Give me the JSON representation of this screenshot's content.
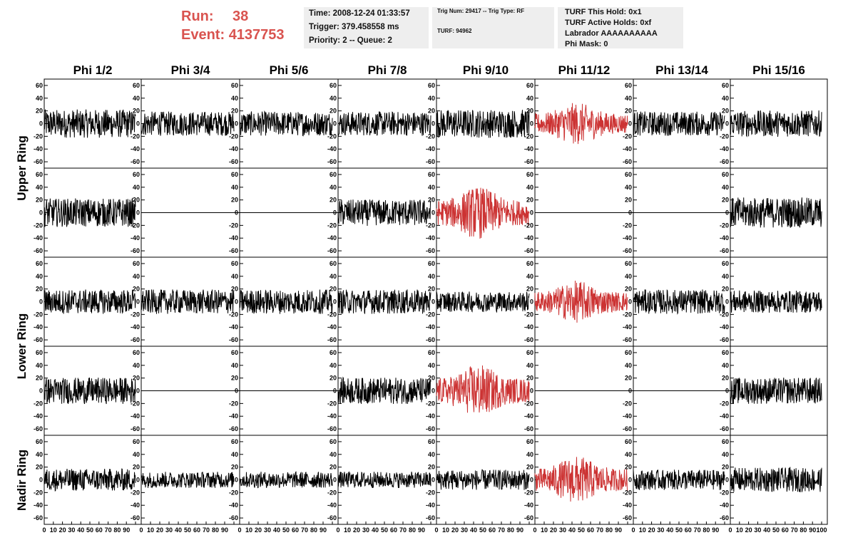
{
  "header": {
    "run_label": "Run:",
    "run_value": "38",
    "event_label": "Event:",
    "event_value": "4137753",
    "info_box_1": [
      "Time: 2008-12-24 01:33:57",
      "Trigger: 379.458558 ms",
      "Priority: 2 -- Queue: 2"
    ],
    "info_box_2": [
      "Trig Num: 29417 -- Trig Type: RF",
      "TURF: 94962"
    ],
    "info_box_3": [
      "TURF This Hold: 0x1",
      "TURF Active Holds: 0xf",
      "Labrador AAAAAAAAAA",
      "Phi Mask: 0"
    ],
    "accent_color": "#d9534f"
  },
  "chart_data": {
    "type": "line",
    "columns": [
      "Phi 1/2",
      "Phi 3/4",
      "Phi 5/6",
      "Phi 7/8",
      "Phi 9/10",
      "Phi 11/12",
      "Phi 13/14",
      "Phi 15/16"
    ],
    "row_groups": [
      "Upper Ring",
      "Lower Ring",
      "Nadir Ring"
    ],
    "y_ticks": [
      60,
      40,
      20,
      0,
      -20,
      -40,
      -60
    ],
    "x_ticks": [
      0,
      10,
      20,
      30,
      40,
      50,
      60,
      70,
      80,
      90,
      100
    ],
    "ylim": [
      -70,
      70
    ],
    "xlim": [
      0,
      100
    ],
    "grid": false,
    "triggered_color": "#cc3333",
    "normal_color": "#000000",
    "rows": [
      {
        "status": [
          "noise",
          "noise",
          "noise",
          "noise",
          "noise",
          "triggered",
          "noise",
          "noise"
        ],
        "amplitude": [
          14,
          12,
          12,
          12,
          14,
          16,
          12,
          13
        ]
      },
      {
        "status": [
          "noise",
          "flat",
          "flat",
          "noise",
          "triggered",
          "flat",
          "flat",
          "noise"
        ],
        "amplitude": [
          14,
          0,
          0,
          13,
          20,
          0,
          0,
          15
        ]
      },
      {
        "status": [
          "noise",
          "noise",
          "noise",
          "noise",
          "noise",
          "triggered",
          "noise",
          "noise"
        ],
        "amplitude": [
          12,
          12,
          12,
          12,
          10,
          16,
          12,
          11
        ]
      },
      {
        "status": [
          "noise",
          "flat",
          "flat",
          "noise",
          "triggered",
          "flat",
          "flat",
          "noise"
        ],
        "amplitude": [
          13,
          0,
          0,
          13,
          20,
          0,
          0,
          13
        ]
      },
      {
        "status": [
          "noise",
          "noise",
          "noise",
          "noise",
          "noise",
          "triggered",
          "noise",
          "noise"
        ],
        "amplitude": [
          11,
          8,
          8,
          8,
          10,
          18,
          10,
          12
        ]
      }
    ]
  }
}
